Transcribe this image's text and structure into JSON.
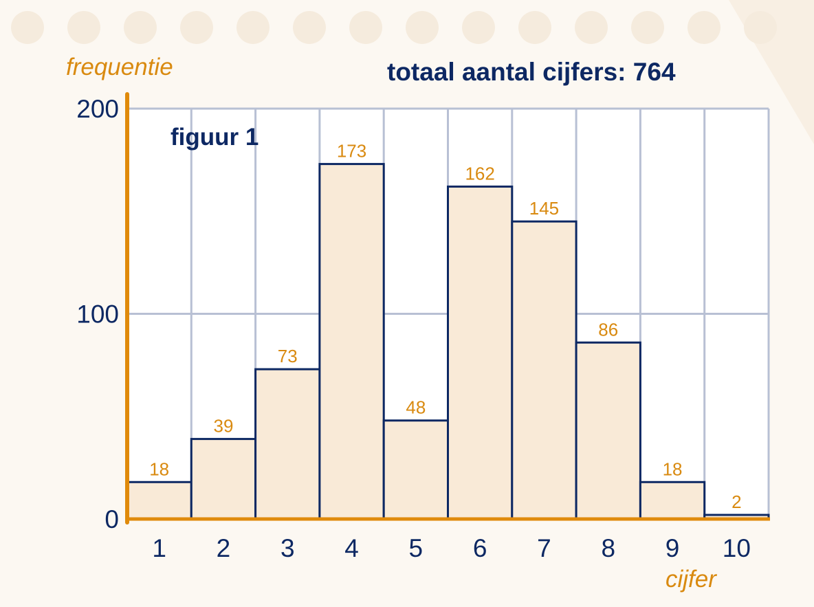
{
  "chart_data": {
    "type": "bar",
    "title": "totaal aantal cijfers: 764",
    "figure_label": "figuur 1",
    "xlabel": "cijfer",
    "ylabel": "frequentie",
    "categories": [
      "1",
      "2",
      "3",
      "4",
      "5",
      "6",
      "7",
      "8",
      "9",
      "10"
    ],
    "values": [
      18,
      39,
      73,
      173,
      48,
      162,
      145,
      86,
      18,
      2
    ],
    "value_labels": [
      "18",
      "39",
      "73",
      "173",
      "48",
      "162",
      "145",
      "86",
      "18",
      "2"
    ],
    "ylim": [
      0,
      200
    ],
    "yticks": [
      "0",
      "100",
      "200"
    ],
    "grid": true,
    "colors": {
      "bar_fill": "#f9ead7",
      "bar_stroke": "#0d2863",
      "grid": "#b8c0d4",
      "axis": "#e08a0b",
      "text_primary": "#0d2863",
      "text_accent": "#d98a10",
      "background": "#fcf8f2"
    }
  }
}
